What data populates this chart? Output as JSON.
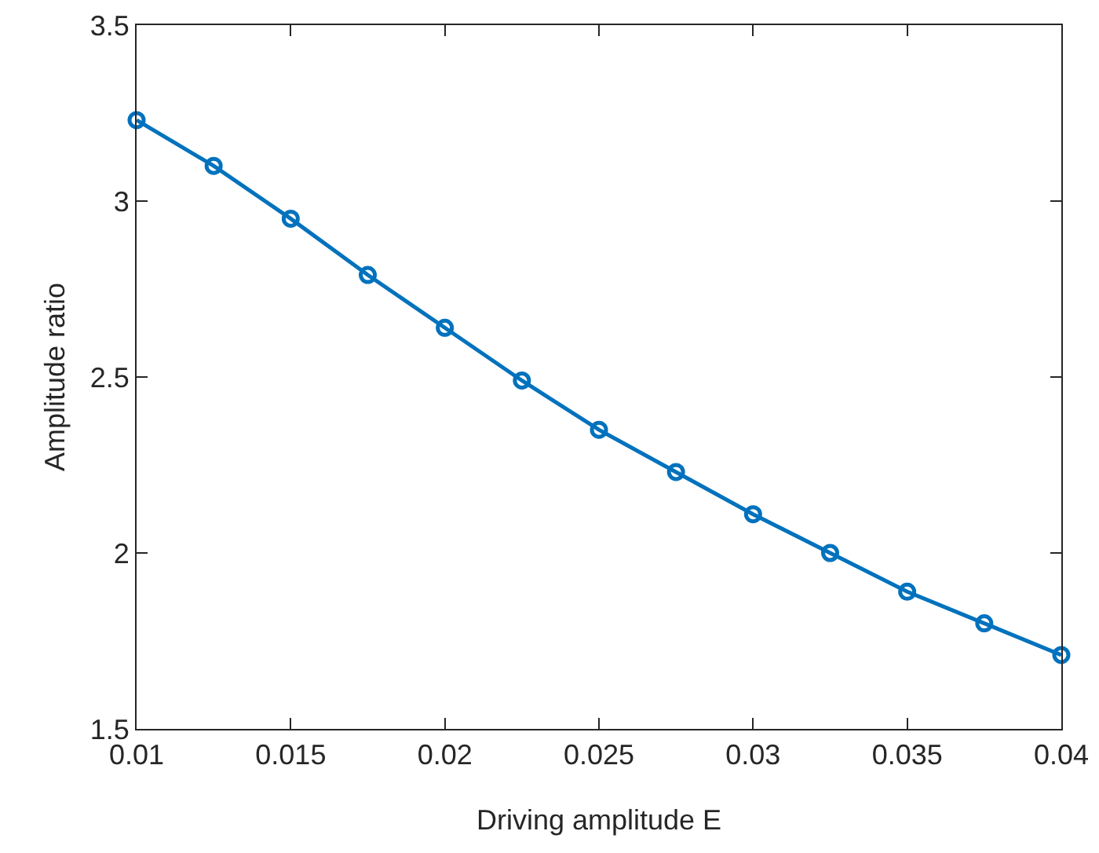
{
  "chart_data": {
    "type": "line",
    "xlabel": "Driving amplitude E",
    "ylabel": "Amplitude ratio",
    "x": [
      0.01,
      0.0125,
      0.015,
      0.0175,
      0.02,
      0.0225,
      0.025,
      0.0275,
      0.03,
      0.0325,
      0.035,
      0.0375,
      0.04
    ],
    "series": [
      {
        "color": "#0072bd",
        "values": [
          3.23,
          3.1,
          2.95,
          2.79,
          2.64,
          2.49,
          2.35,
          2.23,
          2.11,
          2.0,
          1.89,
          1.8,
          1.71
        ]
      }
    ],
    "xlim": [
      0.01,
      0.04
    ],
    "xticks": [
      0.01,
      0.015,
      0.02,
      0.025,
      0.03,
      0.035,
      0.04
    ],
    "ylim": [
      1.5,
      3.5
    ],
    "yticks": [
      1.5,
      2,
      2.5,
      3,
      3.5
    ],
    "marker": "circle",
    "line_style": "solid",
    "grid": false
  }
}
